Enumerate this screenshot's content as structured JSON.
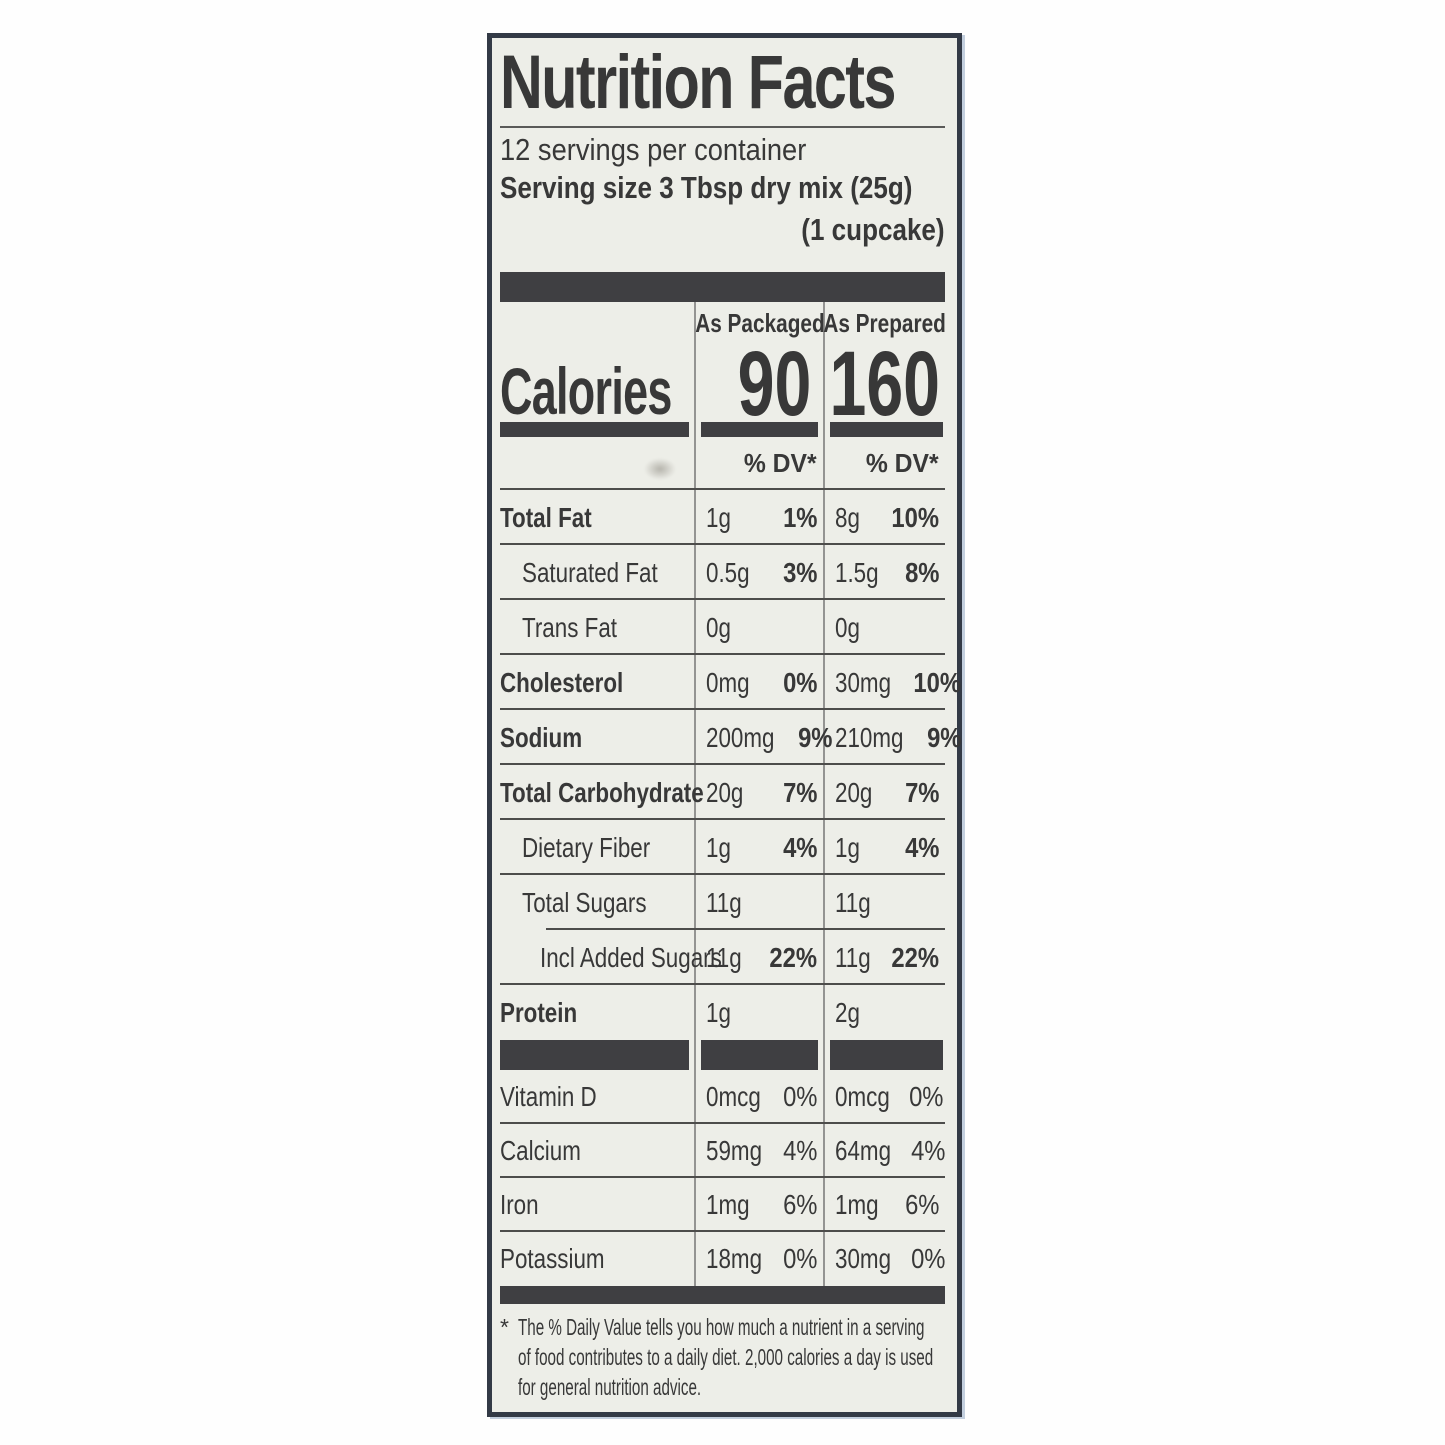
{
  "label": {
    "title": "Nutrition Facts",
    "servings_per_container": "12 servings per container",
    "serving_size": "Serving size 3 Tbsp dry mix (25g)",
    "serving_size_unit": "(1 cupcake)",
    "columns": [
      "As Packaged",
      "As Prepared"
    ],
    "calories": {
      "name": "Calories",
      "as_packaged": "90",
      "as_prepared": "160"
    },
    "dv_header": "% DV*",
    "nutrients": [
      {
        "name": "Total Fat",
        "bold": true,
        "indent": 0,
        "pkg_amt": "1g",
        "pkg_dv": "1%",
        "prep_amt": "8g",
        "prep_dv": "10%",
        "sep": "full"
      },
      {
        "name": "Saturated Fat",
        "bold": false,
        "indent": 1,
        "pkg_amt": "0.5g",
        "pkg_dv": "3%",
        "prep_amt": "1.5g",
        "prep_dv": "8%",
        "sep": "full"
      },
      {
        "name": "Trans Fat",
        "bold": false,
        "indent": 1,
        "pkg_amt": "0g",
        "pkg_dv": "",
        "prep_amt": "0g",
        "prep_dv": "",
        "sep": "full"
      },
      {
        "name": "Cholesterol",
        "bold": true,
        "indent": 0,
        "pkg_amt": "0mg",
        "pkg_dv": "0%",
        "prep_amt": "30mg",
        "prep_dv": "10%",
        "sep": "full"
      },
      {
        "name": "Sodium",
        "bold": true,
        "indent": 0,
        "pkg_amt": "200mg",
        "pkg_dv": "9%",
        "prep_amt": "210mg",
        "prep_dv": "9%",
        "sep": "full"
      },
      {
        "name": "Total Carbohydrate",
        "bold": true,
        "indent": 0,
        "pkg_amt": "20g",
        "pkg_dv": "7%",
        "prep_amt": "20g",
        "prep_dv": "7%",
        "sep": "full"
      },
      {
        "name": "Dietary Fiber",
        "bold": false,
        "indent": 1,
        "pkg_amt": "1g",
        "pkg_dv": "4%",
        "prep_amt": "1g",
        "prep_dv": "4%",
        "sep": "full"
      },
      {
        "name": "Total Sugars",
        "bold": false,
        "indent": 1,
        "pkg_amt": "11g",
        "pkg_dv": "",
        "prep_amt": "11g",
        "prep_dv": "",
        "sep": "indent"
      },
      {
        "name": "Incl Added Sugars",
        "bold": false,
        "indent": 2,
        "pkg_amt": "11g",
        "pkg_dv": "22%",
        "prep_amt": "11g",
        "prep_dv": "22%",
        "sep": "full"
      },
      {
        "name": "Protein",
        "bold": true,
        "indent": 0,
        "pkg_amt": "1g",
        "pkg_dv": "",
        "prep_amt": "2g",
        "prep_dv": "",
        "sep": "none"
      }
    ],
    "micronutrients": [
      {
        "name": "Vitamin D",
        "bold": false,
        "indent": 0,
        "pkg_amt": "0mcg",
        "pkg_dv": "0%",
        "prep_amt": "0mcg",
        "prep_dv": "0%",
        "sep": "full"
      },
      {
        "name": "Calcium",
        "bold": false,
        "indent": 0,
        "pkg_amt": "59mg",
        "pkg_dv": "4%",
        "prep_amt": "64mg",
        "prep_dv": "4%",
        "sep": "full"
      },
      {
        "name": "Iron",
        "bold": false,
        "indent": 0,
        "pkg_amt": "1mg",
        "pkg_dv": "6%",
        "prep_amt": "1mg",
        "prep_dv": "6%",
        "sep": "full"
      },
      {
        "name": "Potassium",
        "bold": false,
        "indent": 0,
        "pkg_amt": "18mg",
        "pkg_dv": "0%",
        "prep_amt": "30mg",
        "prep_dv": "0%",
        "sep": "none"
      }
    ],
    "footnote_marker": "*",
    "footnote_lines": [
      "The % Daily Value tells you how much a nutrient in a serving",
      "of food contributes to a daily diet. 2,000 calories a day is used",
      "for general nutrition advice."
    ]
  },
  "colors": {
    "label_bg": "#edeee8",
    "ink": "#383838",
    "bar": "#3f3f42",
    "border": "#333a46",
    "grid": "#949492",
    "hairline": "#4d4d4b"
  }
}
